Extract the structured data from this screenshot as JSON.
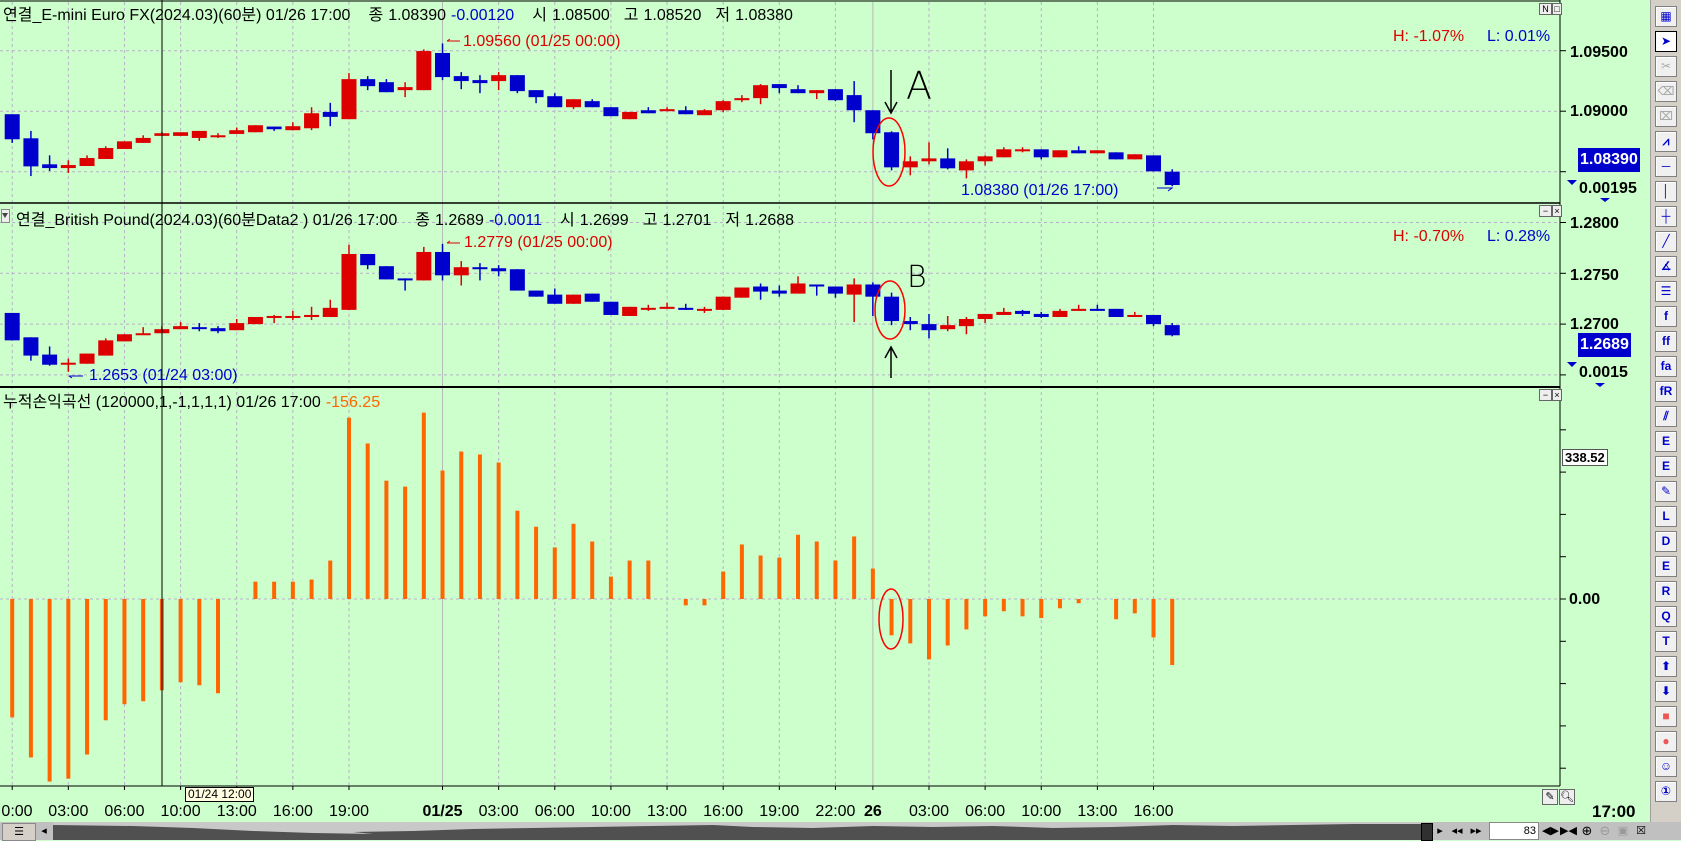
{
  "colors": {
    "background": "#ccffcc",
    "up": "#dd0000",
    "down": "#0000cc",
    "pnl": "#ff6600",
    "grid": "#b8b0c8",
    "annotation": "#ff0000"
  },
  "panel1": {
    "title": "연결_E-mini Euro FX(2024.03)(60분) 01/26 17:00",
    "close_label": "종",
    "close": "1.08390",
    "change": "-0.00120",
    "open_label": "시",
    "open": "1.08500",
    "high_label": "고",
    "high": "1.08520",
    "low_label": "저",
    "low": "1.08380",
    "max_marker": "1.09560 (01/25 00:00)",
    "min_marker": "1.08380 (01/26 17:00)",
    "h_pct": "H: -1.07%",
    "l_pct": "L: 0.01%",
    "axis_labels": [
      "1.09500",
      "1.09000"
    ],
    "last_price": "1.08390",
    "diff": "0.00195",
    "btn_n": "N",
    "btn_max": "□",
    "candles": [
      [
        1.08975,
        1.08975,
        1.08738,
        1.08768
      ],
      [
        1.08776,
        1.08837,
        1.08464,
        1.08544
      ],
      [
        1.08561,
        1.08635,
        1.08506,
        1.0853
      ],
      [
        1.0853,
        1.08594,
        1.08489,
        1.08555
      ],
      [
        1.08547,
        1.08635,
        1.08547,
        1.08613
      ],
      [
        1.08605,
        1.0871,
        1.08605,
        1.08696
      ],
      [
        1.08688,
        1.08751,
        1.08688,
        1.08751
      ],
      [
        1.08738,
        1.08801,
        1.08738,
        1.08779
      ],
      [
        1.08796,
        1.08829,
        1.08796,
        1.08818
      ],
      [
        1.08796,
        1.08826,
        1.08796,
        1.08826
      ],
      [
        1.08779,
        1.08837,
        1.08754,
        1.08837
      ],
      [
        1.08785,
        1.08818,
        1.08779,
        1.08801
      ],
      [
        1.08812,
        1.08865,
        1.08812,
        1.08843
      ],
      [
        1.08826,
        1.08884,
        1.08826,
        1.08884
      ],
      [
        1.08873,
        1.08873,
        1.08837,
        1.08851
      ],
      [
        1.08843,
        1.08909,
        1.08843,
        1.08876
      ],
      [
        1.08859,
        1.09033,
        1.08843,
        1.08983
      ],
      [
        1.08994,
        1.09069,
        1.08876,
        1.08953
      ],
      [
        1.08934,
        1.09315,
        1.08934,
        1.09265
      ],
      [
        1.09265,
        1.0929,
        1.09174,
        1.09207
      ],
      [
        1.0924,
        1.09265,
        1.09157,
        1.09157
      ],
      [
        1.09174,
        1.0924,
        1.09116,
        1.09199
      ],
      [
        1.09174,
        1.09511,
        1.09174,
        1.09497
      ],
      [
        1.09481,
        1.0956,
        1.09257,
        1.09282
      ],
      [
        1.0929,
        1.09323,
        1.09182,
        1.09249
      ],
      [
        1.09257,
        1.09298,
        1.09149,
        1.09232
      ],
      [
        1.09249,
        1.09323,
        1.09174,
        1.09298
      ],
      [
        1.09298,
        1.09298,
        1.09149,
        1.09166
      ],
      [
        1.09174,
        1.09174,
        1.09066,
        1.09116
      ],
      [
        1.09124,
        1.09149,
        1.09033,
        1.09033
      ],
      [
        1.09033,
        1.09099,
        1.09017,
        1.09099
      ],
      [
        1.09083,
        1.09099,
        1.09033,
        1.09033
      ],
      [
        1.09033,
        1.09033,
        1.08959,
        1.08959
      ],
      [
        1.08934,
        1.08994,
        1.08934,
        1.08994
      ],
      [
        1.09008,
        1.09033,
        1.08983,
        1.08983
      ],
      [
        1.09,
        1.09033,
        1.09,
        1.09017
      ],
      [
        1.09008,
        1.09041,
        1.08975,
        1.08975
      ],
      [
        1.08967,
        1.09017,
        1.08967,
        1.09008
      ],
      [
        1.09008,
        1.09091,
        1.08992,
        1.09083
      ],
      [
        1.09091,
        1.09133,
        1.09075,
        1.09108
      ],
      [
        1.09108,
        1.09224,
        1.09058,
        1.09215
      ],
      [
        1.09224,
        1.09224,
        1.09149,
        1.09191
      ],
      [
        1.09182,
        1.09215,
        1.09149,
        1.09149
      ],
      [
        1.09149,
        1.09174,
        1.091,
        1.09174
      ],
      [
        1.09182,
        1.09182,
        1.09083,
        1.09091
      ],
      [
        1.09133,
        1.09249,
        1.08909,
        1.09008
      ],
      [
        1.09008,
        1.09008,
        1.08768,
        1.08818
      ],
      [
        1.08826,
        1.08834,
        1.08511,
        1.08536
      ],
      [
        1.08536,
        1.08627,
        1.0847,
        1.08586
      ],
      [
        1.08586,
        1.08743,
        1.08561,
        1.0861
      ],
      [
        1.0861,
        1.08693,
        1.08519,
        1.08528
      ],
      [
        1.08511,
        1.08602,
        1.08445,
        1.08586
      ],
      [
        1.08586,
        1.08635,
        1.08552,
        1.08627
      ],
      [
        1.08619,
        1.08702,
        1.08619,
        1.08685
      ],
      [
        1.08677,
        1.08702,
        1.0866,
        1.08685
      ],
      [
        1.08685,
        1.08685,
        1.08602,
        1.08619
      ],
      [
        1.08619,
        1.08677,
        1.08619,
        1.08677
      ],
      [
        1.08677,
        1.0871,
        1.08652,
        1.08652
      ],
      [
        1.08652,
        1.08677,
        1.08652,
        1.08677
      ],
      [
        1.0866,
        1.0866,
        1.08602,
        1.08602
      ],
      [
        1.08602,
        1.08644,
        1.08602,
        1.08644
      ],
      [
        1.08635,
        1.08635,
        1.08503,
        1.08503
      ],
      [
        1.085,
        1.0852,
        1.0838,
        1.0839
      ]
    ]
  },
  "panel2": {
    "title": "연결_British Pound(2024.03)(60분Data2 ) 01/26 17:00",
    "close_label": "종",
    "close": "1.2689",
    "change": "-0.0011",
    "open_label": "시",
    "open": "1.2699",
    "high_label": "고",
    "high": "1.2701",
    "low_label": "저",
    "low": "1.2688",
    "max_marker": "1.2779 (01/25 00:00)",
    "min_marker": "1.2653 (01/24 03:00)",
    "h_pct": "H: -0.70%",
    "l_pct": "L: 0.28%",
    "axis_labels": [
      "1.2800",
      "1.2750",
      "1.2700"
    ],
    "last_price": "1.2689",
    "diff": "0.0015",
    "btn_min": "−",
    "btn_close": "×",
    "candles": [
      [
        1.2711,
        1.2711,
        1.2684,
        1.2684
      ],
      [
        1.2687,
        1.2687,
        1.2664,
        1.2669
      ],
      [
        1.267,
        1.2678,
        1.2659,
        1.266
      ],
      [
        1.2661,
        1.2666,
        1.2653,
        1.2662
      ],
      [
        1.2661,
        1.2671,
        1.2661,
        1.2671
      ],
      [
        1.2669,
        1.2686,
        1.2669,
        1.2684
      ],
      [
        1.2683,
        1.269,
        1.2683,
        1.269
      ],
      [
        1.269,
        1.2697,
        1.269,
        1.2691
      ],
      [
        1.2691,
        1.2698,
        1.2691,
        1.2695
      ],
      [
        1.2695,
        1.2702,
        1.2695,
        1.2698
      ],
      [
        1.2697,
        1.2701,
        1.2693,
        1.2696
      ],
      [
        1.2696,
        1.2698,
        1.2691,
        1.2693
      ],
      [
        1.2694,
        1.2705,
        1.2694,
        1.2701
      ],
      [
        1.27,
        1.2707,
        1.27,
        1.2707
      ],
      [
        1.2707,
        1.2709,
        1.2701,
        1.2708
      ],
      [
        1.2707,
        1.2713,
        1.2704,
        1.2708
      ],
      [
        1.2707,
        1.2717,
        1.2704,
        1.2709
      ],
      [
        1.2707,
        1.2724,
        1.2707,
        1.2716
      ],
      [
        1.2714,
        1.2778,
        1.2714,
        1.2769
      ],
      [
        1.2769,
        1.2769,
        1.2754,
        1.2758
      ],
      [
        1.2757,
        1.2757,
        1.2744,
        1.2744
      ],
      [
        1.2745,
        1.2745,
        1.2733,
        1.2743
      ],
      [
        1.2743,
        1.2776,
        1.2743,
        1.2771
      ],
      [
        1.2771,
        1.2779,
        1.2743,
        1.2748
      ],
      [
        1.2748,
        1.2762,
        1.2738,
        1.2756
      ],
      [
        1.2756,
        1.276,
        1.2743,
        1.2754
      ],
      [
        1.2755,
        1.2758,
        1.2747,
        1.2752
      ],
      [
        1.2754,
        1.2754,
        1.2733,
        1.2733
      ],
      [
        1.2733,
        1.2733,
        1.2727,
        1.2727
      ],
      [
        1.2729,
        1.2735,
        1.272,
        1.272
      ],
      [
        1.272,
        1.2729,
        1.272,
        1.2729
      ],
      [
        1.273,
        1.273,
        1.2722,
        1.2722
      ],
      [
        1.2722,
        1.2722,
        1.2709,
        1.2709
      ],
      [
        1.2708,
        1.2717,
        1.2708,
        1.2717
      ],
      [
        1.2715,
        1.2719,
        1.2713,
        1.2716
      ],
      [
        1.2715,
        1.2721,
        1.2715,
        1.2717
      ],
      [
        1.2716,
        1.272,
        1.2714,
        1.2714
      ],
      [
        1.2714,
        1.2717,
        1.2711,
        1.2715
      ],
      [
        1.2714,
        1.2727,
        1.2714,
        1.2727
      ],
      [
        1.2726,
        1.2736,
        1.2726,
        1.2736
      ],
      [
        1.2737,
        1.274,
        1.2724,
        1.2732
      ],
      [
        1.2733,
        1.2738,
        1.2727,
        1.273
      ],
      [
        1.273,
        1.2747,
        1.273,
        1.274
      ],
      [
        1.2739,
        1.2739,
        1.2728,
        1.2737
      ],
      [
        1.2737,
        1.2737,
        1.2726,
        1.273
      ],
      [
        1.2729,
        1.2745,
        1.2702,
        1.2739
      ],
      [
        1.2739,
        1.2741,
        1.2708,
        1.2727
      ],
      [
        1.2727,
        1.2731,
        1.2699,
        1.2703
      ],
      [
        1.2703,
        1.2707,
        1.2694,
        1.27
      ],
      [
        1.27,
        1.271,
        1.2686,
        1.2694
      ],
      [
        1.2695,
        1.2708,
        1.2693,
        1.2699
      ],
      [
        1.2698,
        1.2707,
        1.269,
        1.2705
      ],
      [
        1.2705,
        1.271,
        1.2701,
        1.271
      ],
      [
        1.2709,
        1.2716,
        1.2709,
        1.2712
      ],
      [
        1.2713,
        1.2714,
        1.2708,
        1.271
      ],
      [
        1.271,
        1.2712,
        1.2706,
        1.2707
      ],
      [
        1.2707,
        1.2715,
        1.2707,
        1.2713
      ],
      [
        1.2713,
        1.2719,
        1.2713,
        1.2715
      ],
      [
        1.2715,
        1.2719,
        1.2713,
        1.2713
      ],
      [
        1.2715,
        1.2715,
        1.2707,
        1.2707
      ],
      [
        1.2707,
        1.2712,
        1.2707,
        1.2709
      ],
      [
        1.2709,
        1.2709,
        1.2698,
        1.27
      ],
      [
        1.2699,
        1.2701,
        1.2688,
        1.2689
      ]
    ]
  },
  "panel3": {
    "title": "누적손익곡선  (120000,1,-1,1,1,1) 01/26 17:00",
    "value": "-156.25",
    "axis_labels": [
      "338.52",
      "0.00"
    ],
    "btn_min": "−",
    "btn_close": "×",
    "values": [
      -280,
      -375,
      -432,
      -425,
      -368,
      -287,
      -249,
      -242,
      -216,
      -197,
      -204,
      -223,
      0,
      41,
      41,
      41,
      46,
      91,
      429,
      368,
      280,
      266,
      441,
      304,
      349,
      342,
      323,
      209,
      171,
      122,
      178,
      136,
      53,
      91,
      91,
      0,
      -15,
      -15,
      65,
      129,
      103,
      98,
      152,
      136,
      91,
      148,
      72,
      -86,
      -105,
      -143,
      -110,
      -72,
      -41,
      -29,
      -41,
      -45,
      -22,
      -10,
      0,
      -48,
      -34,
      -91,
      -156.25
    ]
  },
  "time_axis": {
    "labels": [
      {
        "text": "0:00",
        "bar": 0
      },
      {
        "text": "03:00",
        "bar": 3
      },
      {
        "text": "06:00",
        "bar": 6
      },
      {
        "text": "10:00",
        "bar": 9
      },
      {
        "text": "13:00",
        "bar": 12
      },
      {
        "text": "16:00",
        "bar": 15
      },
      {
        "text": "19:00",
        "bar": 18
      },
      {
        "text": "01/25",
        "bar": 23,
        "bold": true
      },
      {
        "text": "03:00",
        "bar": 26
      },
      {
        "text": "06:00",
        "bar": 29
      },
      {
        "text": "10:00",
        "bar": 32
      },
      {
        "text": "13:00",
        "bar": 35
      },
      {
        "text": "16:00",
        "bar": 38
      },
      {
        "text": "19:00",
        "bar": 41
      },
      {
        "text": "22:00",
        "bar": 44
      },
      {
        "text": "26",
        "bar": 46,
        "bold": true
      },
      {
        "text": "03:00",
        "bar": 49
      },
      {
        "text": "06:00",
        "bar": 52
      },
      {
        "text": "10:00",
        "bar": 55
      },
      {
        "text": "13:00",
        "bar": 58
      },
      {
        "text": "16:00",
        "bar": 61
      }
    ],
    "last_time": "17:00",
    "crosshair_tooltip": "01/24 12:00"
  },
  "annotations": {
    "label_a": "A",
    "label_b": "B"
  },
  "toolbar": {
    "tools": [
      {
        "icon": "chart-layout-icon",
        "state": "normal"
      },
      {
        "icon": "cursor-icon",
        "state": "active"
      },
      {
        "icon": "delete-object-icon",
        "state": "disabled"
      },
      {
        "icon": "delete-selected-icon",
        "state": "disabled"
      },
      {
        "icon": "delete-all-icon",
        "state": "disabled"
      },
      {
        "icon": "crosshair-chart-icon",
        "state": "normal"
      },
      {
        "icon": "horizontal-line-icon",
        "state": "normal"
      },
      {
        "icon": "vertical-line-icon",
        "state": "normal"
      },
      {
        "icon": "cross-line-icon",
        "state": "normal"
      },
      {
        "icon": "trend-line-icon",
        "state": "normal"
      },
      {
        "icon": "angle-line-icon",
        "state": "normal"
      },
      {
        "icon": "parallel-lines-icon",
        "state": "normal"
      },
      {
        "icon": "fibonacci-retracement-icon",
        "state": "normal"
      },
      {
        "icon": "fibonacci-fan-icon",
        "state": "normal"
      },
      {
        "icon": "fibonacci-arc-icon",
        "state": "normal"
      },
      {
        "icon": "fibonacci-time-icon",
        "state": "normal"
      },
      {
        "icon": "channel-icon",
        "state": "normal"
      },
      {
        "icon": "elliott-wave-icon",
        "state": "normal"
      },
      {
        "icon": "elliott-wave-2-icon",
        "state": "normal"
      },
      {
        "icon": "pencil-icon",
        "state": "normal"
      },
      {
        "icon": "gann-line-icon",
        "state": "normal"
      },
      {
        "icon": "gann-fan-icon",
        "state": "normal"
      },
      {
        "icon": "gann-grid-icon",
        "state": "normal"
      },
      {
        "icon": "gann-box-icon",
        "state": "normal"
      },
      {
        "icon": "quadrant-lines-icon",
        "state": "normal"
      },
      {
        "icon": "text-icon",
        "state": "normal"
      },
      {
        "icon": "arrow-up-icon",
        "state": "normal"
      },
      {
        "icon": "arrow-down-icon",
        "state": "normal"
      },
      {
        "icon": "rectangle-icon",
        "state": "normal"
      },
      {
        "icon": "circle-icon",
        "state": "normal"
      },
      {
        "icon": "smiley-icon",
        "state": "normal"
      },
      {
        "icon": "number-icon",
        "state": "normal"
      }
    ]
  },
  "scrollbar": {
    "bar_count": "83"
  }
}
